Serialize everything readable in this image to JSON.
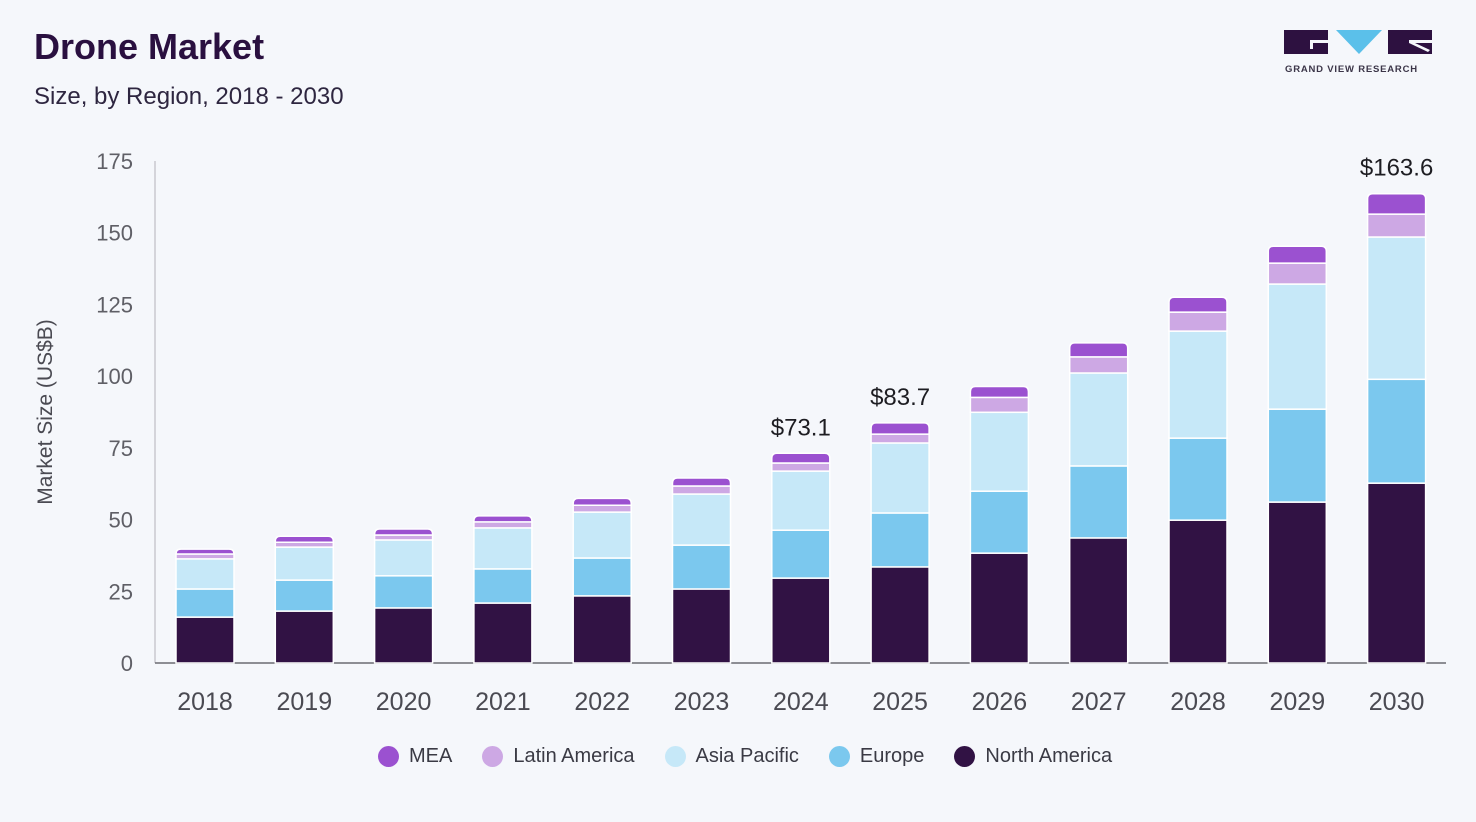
{
  "header": {
    "title": "Drone Market",
    "subtitle": "Size, by Region, 2018 - 2030",
    "logo_text": "GRAND VIEW RESEARCH"
  },
  "chart_data": {
    "type": "bar",
    "stacked": true,
    "title": "Drone Market",
    "subtitle": "Size, by Region, 2018 - 2030",
    "xlabel": "",
    "ylabel": "Market Size (US$B)",
    "ylim": [
      0,
      175
    ],
    "yticks": [
      0,
      25,
      50,
      75,
      100,
      125,
      150,
      175
    ],
    "grid": false,
    "legend_position": "bottom",
    "categories": [
      "2018",
      "2019",
      "2020",
      "2021",
      "2022",
      "2023",
      "2024",
      "2025",
      "2026",
      "2027",
      "2028",
      "2029",
      "2030"
    ],
    "series": [
      {
        "name": "North America",
        "color": "#311244",
        "values": [
          16.0,
          18.1,
          19.2,
          20.9,
          23.4,
          25.8,
          29.6,
          33.5,
          38.3,
          43.6,
          49.8,
          56.1,
          62.7
        ]
      },
      {
        "name": "Europe",
        "color": "#7bc8ee",
        "values": [
          9.8,
          10.8,
          11.2,
          11.9,
          13.2,
          15.3,
          16.7,
          18.8,
          21.6,
          25.1,
          28.6,
          32.4,
          36.2
        ]
      },
      {
        "name": "Asia Pacific",
        "color": "#c6e8f8",
        "values": [
          10.5,
          11.5,
          12.5,
          14.3,
          16.0,
          17.8,
          20.6,
          24.4,
          27.5,
          32.4,
          37.3,
          43.6,
          49.6
        ]
      },
      {
        "name": "Latin America",
        "color": "#cda8e4",
        "values": [
          1.7,
          1.7,
          1.7,
          2.1,
          2.4,
          2.8,
          2.8,
          3.1,
          5.2,
          5.6,
          6.6,
          7.3,
          8.0
        ]
      },
      {
        "name": "MEA",
        "color": "#9b51d0",
        "values": [
          1.7,
          2.1,
          2.1,
          2.1,
          2.4,
          2.8,
          3.4,
          3.9,
          3.8,
          4.9,
          5.2,
          5.9,
          7.1
        ]
      }
    ],
    "annotations": [
      {
        "category": "2024",
        "text": "$73.1"
      },
      {
        "category": "2025",
        "text": "$83.7"
      },
      {
        "category": "2030",
        "text": "$163.6"
      }
    ],
    "legend_order": [
      "MEA",
      "Latin America",
      "Asia Pacific",
      "Europe",
      "North America"
    ]
  }
}
